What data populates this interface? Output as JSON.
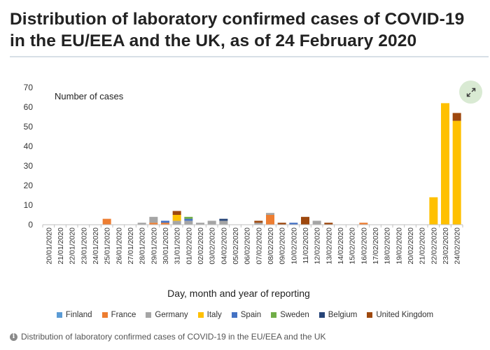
{
  "page": {
    "title": "Distribution of laboratory confirmed cases of COVID-19 in the EU/EEA and the UK, as of 24 February 2020",
    "caption": "Distribution of laboratory confirmed cases of COVID-19 in the EU/EEA and the UK",
    "expand_icon": "expand-arrows-icon",
    "info_icon": "info-icon",
    "info_glyph": "i"
  },
  "chart_data": {
    "type": "bar",
    "stacked": true,
    "ylabel": "Number of cases",
    "xlabel": "Day, month and year of reporting",
    "ylim": [
      0,
      70
    ],
    "yticks": [
      0,
      10,
      20,
      30,
      40,
      50,
      60,
      70
    ],
    "grid": false,
    "legend_position": "bottom",
    "categories": [
      "20/01/2020",
      "21/01/2020",
      "22/01/2020",
      "23/01/2020",
      "24/01/2020",
      "25/01/2020",
      "26/01/2020",
      "27/01/2020",
      "28/01/2020",
      "29/01/2020",
      "30/01/2020",
      "31/01/2020",
      "01/02/2020",
      "02/02/2020",
      "03/02/2020",
      "04/02/2020",
      "05/02/2020",
      "06/02/2020",
      "07/02/2020",
      "08/02/2020",
      "09/02/2020",
      "10/02/2020",
      "11/02/2020",
      "12/02/2020",
      "13/02/2020",
      "14/02/2020",
      "15/02/2020",
      "16/02/2020",
      "17/02/2020",
      "18/02/2020",
      "19/02/2020",
      "20/02/2020",
      "21/02/2020",
      "22/02/2020",
      "23/02/2020",
      "24/02/2020"
    ],
    "series": [
      {
        "name": "Finland",
        "color": "#5b9bd5",
        "values": [
          0,
          0,
          0,
          0,
          0,
          0,
          0,
          0,
          0,
          0,
          0,
          0,
          0,
          0,
          0,
          0,
          0,
          0,
          0,
          0,
          0,
          0,
          0,
          0,
          0,
          0,
          0,
          0,
          0,
          0,
          0,
          0,
          0,
          0,
          0,
          0
        ]
      },
      {
        "name": "France",
        "color": "#ed7d31",
        "values": [
          0,
          0,
          0,
          0,
          0,
          3,
          0,
          0,
          0,
          1,
          1,
          0,
          0,
          0,
          0,
          0,
          0,
          0,
          0,
          5,
          0,
          0,
          0,
          0,
          0,
          0,
          0,
          1,
          0,
          0,
          0,
          0,
          0,
          0,
          0,
          0
        ]
      },
      {
        "name": "Germany",
        "color": "#a5a5a5",
        "values": [
          0,
          0,
          0,
          0,
          0,
          0,
          0,
          0,
          1,
          3,
          0,
          2,
          2,
          1,
          2,
          2,
          0,
          0,
          1,
          1,
          0,
          0,
          0,
          2,
          0,
          0,
          0,
          0,
          0,
          0,
          0,
          0,
          0,
          0,
          0,
          0
        ]
      },
      {
        "name": "Italy",
        "color": "#ffc000",
        "values": [
          0,
          0,
          0,
          0,
          0,
          0,
          0,
          0,
          0,
          0,
          0,
          3,
          0,
          0,
          0,
          0,
          0,
          0,
          0,
          0,
          0,
          0,
          0,
          0,
          0,
          0,
          0,
          0,
          0,
          0,
          0,
          0,
          0,
          14,
          62,
          53
        ]
      },
      {
        "name": "Spain",
        "color": "#4472c4",
        "values": [
          0,
          0,
          0,
          0,
          0,
          0,
          0,
          0,
          0,
          0,
          1,
          0,
          1,
          0,
          0,
          0,
          0,
          0,
          0,
          0,
          0,
          1,
          0,
          0,
          0,
          0,
          0,
          0,
          0,
          0,
          0,
          0,
          0,
          0,
          0,
          0
        ]
      },
      {
        "name": "Sweden",
        "color": "#70ad47",
        "values": [
          0,
          0,
          0,
          0,
          0,
          0,
          0,
          0,
          0,
          0,
          0,
          0,
          1,
          0,
          0,
          0,
          0,
          0,
          0,
          0,
          0,
          0,
          0,
          0,
          0,
          0,
          0,
          0,
          0,
          0,
          0,
          0,
          0,
          0,
          0,
          0
        ]
      },
      {
        "name": "Belgium",
        "color": "#264478",
        "values": [
          0,
          0,
          0,
          0,
          0,
          0,
          0,
          0,
          0,
          0,
          0,
          0,
          0,
          0,
          0,
          1,
          0,
          0,
          0,
          0,
          0,
          0,
          0,
          0,
          0,
          0,
          0,
          0,
          0,
          0,
          0,
          0,
          0,
          0,
          0,
          0
        ]
      },
      {
        "name": "United Kingdom",
        "color": "#9e480e",
        "values": [
          0,
          0,
          0,
          0,
          0,
          0,
          0,
          0,
          0,
          0,
          0,
          2,
          0,
          0,
          0,
          0,
          0,
          0,
          1,
          0,
          1,
          0,
          4,
          0,
          1,
          0,
          0,
          0,
          0,
          0,
          0,
          0,
          0,
          0,
          0,
          4
        ]
      }
    ]
  }
}
